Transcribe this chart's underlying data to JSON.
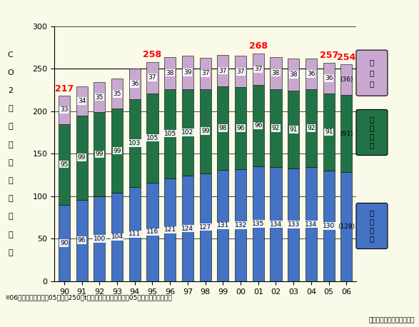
{
  "years": [
    "90",
    "91",
    "92",
    "93",
    "94",
    "95",
    "96",
    "97",
    "98",
    "99",
    "00",
    "01",
    "02",
    "03",
    "04",
    "05",
    "06"
  ],
  "mycar": [
    90,
    96,
    100,
    104,
    111,
    116,
    121,
    124,
    127,
    131,
    132,
    135,
    134,
    133,
    134,
    130,
    128
  ],
  "truck": [
    95,
    99,
    99,
    99,
    103,
    105,
    105,
    102,
    99,
    98,
    96,
    96,
    92,
    91,
    92,
    91,
    91
  ],
  "other": [
    33,
    34,
    35,
    35,
    36,
    37,
    38,
    39,
    37,
    37,
    37,
    37,
    38,
    38,
    36,
    36,
    36
  ],
  "totals_label": [
    217,
    null,
    null,
    null,
    null,
    258,
    null,
    null,
    null,
    null,
    null,
    268,
    null,
    null,
    null,
    257,
    254
  ],
  "totals_show": [
    true,
    false,
    false,
    false,
    false,
    true,
    false,
    false,
    false,
    false,
    false,
    true,
    false,
    false,
    false,
    true,
    true
  ],
  "bar_color_mycar": "#4472C4",
  "bar_color_truck": "#217346",
  "bar_color_other": "#C9A8D0",
  "background_color": "#FAFAE8",
  "plot_bg_color": "#FAFAE8",
  "ylabel_chars": [
    "C",
    "O",
    "2",
    "排",
    "出",
    "量",
    "（",
    "百",
    "万",
    "ト",
    "ン",
    "）"
  ],
  "ylim": [
    0,
    300
  ],
  "yticks": [
    0,
    50,
    100,
    150,
    200,
    250,
    300
  ],
  "legend_mycar": "マイカー",
  "legend_truck": "トラック",
  "legend_other": "その他",
  "note_text": "※06年度：マイカーは05年度－250万t、トラック及びその他は05年度値と仮定した。",
  "source_text": "出典：環境省資料より作成"
}
